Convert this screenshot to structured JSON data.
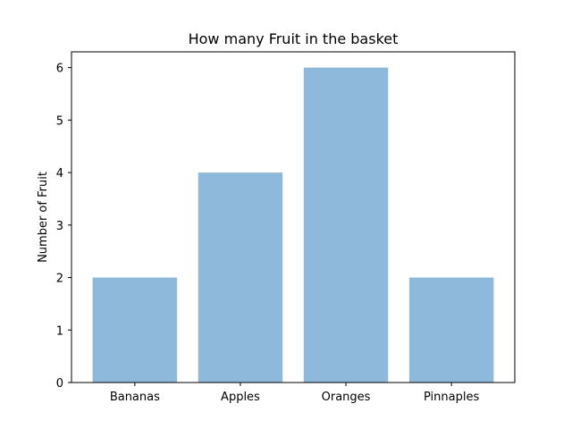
{
  "chart_data": {
    "type": "bar",
    "title": "How many Fruit in the basket",
    "xlabel": "",
    "ylabel": "Number of Fruit",
    "categories": [
      "Bananas",
      "Apples",
      "Oranges",
      "Pinnaples"
    ],
    "values": [
      2,
      4,
      6,
      2
    ],
    "ylim": [
      0,
      6.3
    ],
    "yticks": [
      0,
      1,
      2,
      3,
      4,
      5,
      6
    ],
    "bar_color": "#8fb9da",
    "grid": false,
    "legend": "none"
  }
}
